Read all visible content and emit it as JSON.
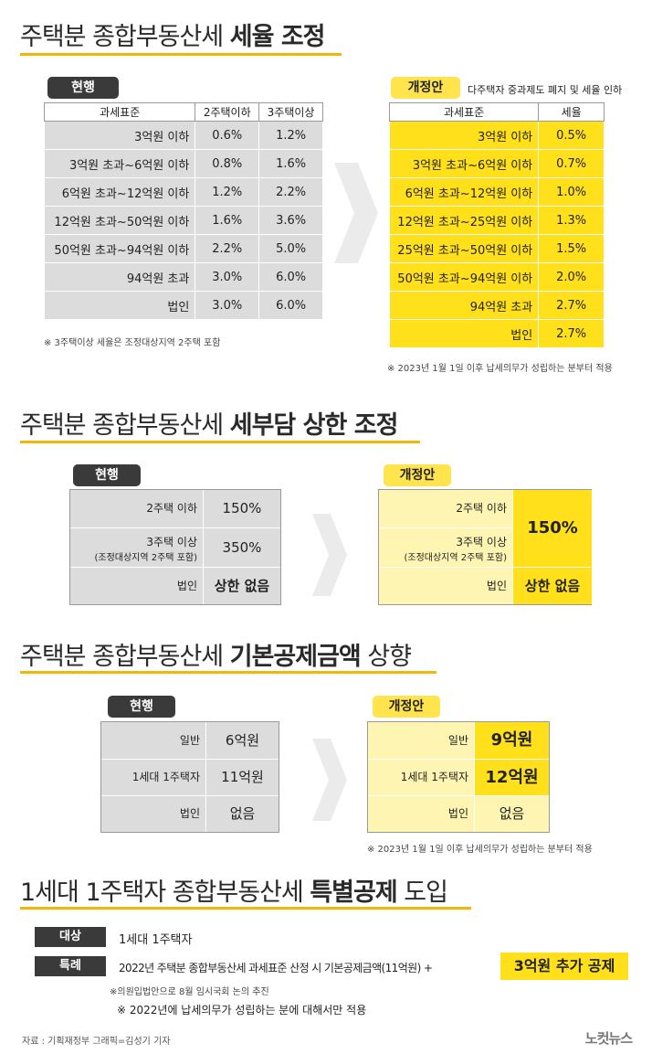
{
  "sec1": {
    "title_pre": "주택분 종합부동산세 ",
    "title_bold": "세율 조정",
    "current_label": "현행",
    "proposal_label": "개정안",
    "proposal_sub": "다주택자 중과제도 폐지 및 세율 인하",
    "current_headers": [
      "과세표준",
      "2주택이하",
      "3주택이상"
    ],
    "current_rows": [
      [
        "3억원 이하",
        "0.6%",
        "1.2%"
      ],
      [
        "3억원 초과~6억원 이하",
        "0.8%",
        "1.6%"
      ],
      [
        "6억원 초과~12억원 이하",
        "1.2%",
        "2.2%"
      ],
      [
        "12억원 초과~50억원 이하",
        "1.6%",
        "3.6%"
      ],
      [
        "50억원 초과~94억원 이하",
        "2.2%",
        "5.0%"
      ],
      [
        "94억원 초과",
        "3.0%",
        "6.0%"
      ],
      [
        "법인",
        "3.0%",
        "6.0%"
      ]
    ],
    "current_note": "※ 3주택이상 세율은 조정대상지역 2주택 포함",
    "proposal_headers": [
      "과세표준",
      "세율"
    ],
    "proposal_rows": [
      [
        "3억원 이하",
        "0.5%"
      ],
      [
        "3억원 초과~6억원 이하",
        "0.7%"
      ],
      [
        "6억원 초과~12억원 이하",
        "1.0%"
      ],
      [
        "12억원 초과~25억원 이하",
        "1.3%"
      ],
      [
        "25억원 초과~50억원 이하",
        "1.5%"
      ],
      [
        "50억원 초과~94억원 이하",
        "2.0%"
      ],
      [
        "94억원 초과",
        "2.7%"
      ],
      [
        "법인",
        "2.7%"
      ]
    ],
    "proposal_note": "※ 2023년 1월 1일 이후 납세의무가 성립하는 분부터 적용"
  },
  "sec2": {
    "title_pre": "주택분 종합부동산세 ",
    "title_bold": "세부담 상한 조정",
    "current_label": "현행",
    "proposal_label": "개정안",
    "cur_r1_label": "2주택 이하",
    "cur_r1_val": "150%",
    "cur_r2_label": "3주택 이상",
    "cur_r2_sub": "(조정대상지역 2주택 포함)",
    "cur_r2_val": "350%",
    "cur_r3_label": "법인",
    "cur_r3_val": "상한 없음",
    "pro_r1_label": "2주택 이하",
    "pro_r2_label": "3주택 이상",
    "pro_r2_sub": "(조정대상지역 2주택 포함)",
    "pro_merged_val": "150%",
    "pro_r3_label": "법인",
    "pro_r3_val": "상한 없음"
  },
  "sec3": {
    "title_pre": "주택분 종합부동산세 ",
    "title_bold": "기본공제금액",
    "title_post": " 상향",
    "current_label": "현행",
    "proposal_label": "개정안",
    "current_rows": [
      [
        "일반",
        "6억원"
      ],
      [
        "1세대 1주택자",
        "11억원"
      ],
      [
        "법인",
        "없음"
      ]
    ],
    "proposal_rows": [
      [
        "일반",
        "9억원"
      ],
      [
        "1세대 1주택자",
        "12억원"
      ],
      [
        "법인",
        "없음"
      ]
    ],
    "note": "※ 2023년 1월 1일 이후 납세의무가 성립하는 분부터 적용"
  },
  "sec4": {
    "title_pre": "1세대 1주택자 종합부동산세 ",
    "title_bold": "특별공제",
    "title_post": " 도입",
    "target_label": "대상",
    "target_val": "1세대 1주택자",
    "special_label": "특례",
    "special_val": "2022년 주택분 종합부동산세 과세표준 산정 시 기본공제금액(11억원) +",
    "special_highlight": "3억원 추가 공제",
    "note1": "※의원입법안으로 8월 임시국회 논의 추진",
    "note2": "※ 2022년에 납세의무가 성립하는 분에 대해서만 적용"
  },
  "footer": "자료 : 기획재정부   그래픽=김성기 기자",
  "logo": "노컷뉴스",
  "colors": {
    "accent": "#f2b705",
    "yellow": "#ffe01a",
    "gray": "#dcdcdc",
    "dark": "#3a3a3a"
  }
}
